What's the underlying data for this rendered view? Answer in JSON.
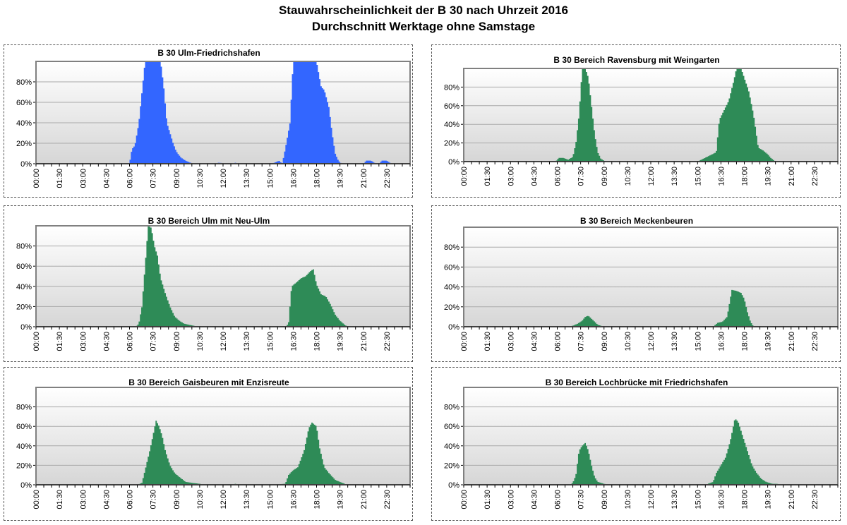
{
  "title": "Stauwahrscheinlichkeit der B 30 nach Uhrzeit 2016",
  "subtitle": "Durchschnitt Werktage ohne Samstage",
  "x_ticks": [
    "00:00",
    "01:30",
    "03:00",
    "04:30",
    "06:00",
    "07:30",
    "09:00",
    "10:30",
    "12:00",
    "13:30",
    "15:00",
    "16:30",
    "18:00",
    "19:30",
    "21:00",
    "22:30"
  ],
  "y_ticks": [
    "0%",
    "20%",
    "40%",
    "60%",
    "80%"
  ],
  "chart_data": [
    {
      "type": "area",
      "title": "B 30 Ulm-Friedrichshafen",
      "color": "#3366ff",
      "ylim": [
        0,
        100
      ],
      "xlim_hours": [
        0,
        24
      ],
      "x_hours": [
        0,
        6.0,
        6.15,
        6.35,
        6.6,
        6.8,
        7.0,
        7.2,
        7.6,
        8.0,
        8.2,
        8.4,
        8.6,
        8.8,
        9.0,
        9.3,
        9.6,
        9.9,
        10.2,
        10.5,
        11.5,
        11.7,
        12.5,
        12.8,
        13.0,
        15.0,
        15.3,
        15.6,
        15.8,
        16.0,
        16.3,
        16.5,
        16.8,
        17.5,
        18.0,
        18.3,
        18.5,
        18.8,
        19.0,
        19.2,
        19.4,
        19.6,
        19.8,
        20.5,
        21.0,
        21.2,
        21.5,
        21.8,
        22.0,
        22.2,
        22.5,
        22.8,
        23.0,
        24
      ],
      "values": [
        0,
        0,
        14,
        18,
        40,
        70,
        100,
        100,
        100,
        100,
        75,
        40,
        30,
        20,
        12,
        6,
        3,
        1,
        0,
        0,
        0,
        1,
        0,
        1,
        0,
        0,
        1,
        3,
        0,
        15,
        40,
        100,
        100,
        100,
        100,
        75,
        72,
        55,
        30,
        10,
        3,
        0,
        0,
        0,
        0,
        3,
        3,
        0,
        0,
        3,
        3,
        0,
        0,
        0
      ]
    },
    {
      "type": "area",
      "title": "B 30 Bereich Ravensburg mit Weingarten",
      "color": "#2e8b57",
      "ylim": [
        0,
        100
      ],
      "xlim_hours": [
        0,
        24
      ],
      "x_hours": [
        0,
        5.9,
        6.1,
        6.4,
        6.7,
        7.0,
        7.2,
        7.4,
        7.6,
        7.8,
        8.0,
        8.2,
        8.4,
        8.6,
        8.8,
        9.0,
        9.2,
        10.0,
        15.0,
        16.2,
        16.4,
        16.7,
        17.0,
        17.3,
        17.5,
        17.8,
        18.0,
        18.3,
        18.6,
        18.9,
        19.2,
        19.5,
        19.7,
        20.0,
        24
      ],
      "values": [
        0,
        0,
        4,
        4,
        2,
        5,
        20,
        50,
        100,
        100,
        90,
        60,
        30,
        10,
        3,
        1,
        0,
        0,
        0,
        10,
        45,
        55,
        65,
        85,
        100,
        100,
        90,
        75,
        50,
        15,
        12,
        8,
        4,
        0,
        0
      ]
    },
    {
      "type": "area",
      "title": "B 30 Bereich Ulm mit Neu-Ulm",
      "color": "#2e8b57",
      "ylim": [
        0,
        100
      ],
      "xlim_hours": [
        0,
        24
      ],
      "x_hours": [
        0,
        6.4,
        6.6,
        6.8,
        7.0,
        7.2,
        7.4,
        7.6,
        7.8,
        8.0,
        8.3,
        8.6,
        8.9,
        9.2,
        9.5,
        9.8,
        10.1,
        10.5,
        11.0,
        16.0,
        16.2,
        16.4,
        16.8,
        17.0,
        17.3,
        17.6,
        17.8,
        18.0,
        18.3,
        18.6,
        18.9,
        19.2,
        19.5,
        19.8,
        20.0,
        24
      ],
      "values": [
        0,
        0,
        3,
        20,
        60,
        100,
        98,
        80,
        70,
        48,
        33,
        20,
        10,
        6,
        3,
        2,
        1,
        0,
        0,
        0,
        3,
        40,
        45,
        48,
        50,
        55,
        57,
        42,
        32,
        30,
        22,
        12,
        6,
        2,
        0,
        0
      ]
    },
    {
      "type": "area",
      "title": "B 30 Bereich Meckenbeuren",
      "color": "#2e8b57",
      "ylim": [
        0,
        100
      ],
      "xlim_hours": [
        0,
        24
      ],
      "x_hours": [
        0,
        6.5,
        7.0,
        7.3,
        7.6,
        7.8,
        8.0,
        8.2,
        8.4,
        8.6,
        8.8,
        9.0,
        9.5,
        16.0,
        16.3,
        16.6,
        16.9,
        17.2,
        17.5,
        17.8,
        18.0,
        18.2,
        18.4,
        18.6,
        24
      ],
      "values": [
        0,
        0,
        1,
        3,
        6,
        10,
        11,
        8,
        5,
        2,
        1,
        0,
        0,
        0,
        4,
        5,
        10,
        37,
        36,
        34,
        28,
        15,
        5,
        0,
        0
      ]
    },
    {
      "type": "area",
      "title": "B 30 Bereich Gaisbeuren mit Enzisreute",
      "color": "#2e8b57",
      "ylim": [
        0,
        100
      ],
      "xlim_hours": [
        0,
        24
      ],
      "x_hours": [
        0,
        6.5,
        6.8,
        7.0,
        7.3,
        7.5,
        7.7,
        7.9,
        8.1,
        8.3,
        8.6,
        8.9,
        9.2,
        9.6,
        10.0,
        10.5,
        11.0,
        12.5,
        12.8,
        13.0,
        15.0,
        16.0,
        16.2,
        16.5,
        16.8,
        17.2,
        17.5,
        17.7,
        18.0,
        18.2,
        18.5,
        18.8,
        19.2,
        19.5,
        19.8,
        20.0,
        24
      ],
      "values": [
        0,
        0,
        2,
        15,
        35,
        50,
        66,
        60,
        50,
        35,
        20,
        12,
        8,
        3,
        2,
        1,
        0,
        0,
        1,
        0,
        0,
        1,
        10,
        15,
        18,
        35,
        58,
        64,
        60,
        38,
        18,
        12,
        5,
        3,
        1,
        0,
        0
      ]
    },
    {
      "type": "area",
      "title": "B 30 Bereich Lochbrücke mit Friedrichshafen",
      "color": "#2e8b57",
      "ylim": [
        0,
        100
      ],
      "xlim_hours": [
        0,
        24
      ],
      "x_hours": [
        0,
        6.8,
        7.0,
        7.2,
        7.4,
        7.6,
        7.8,
        8.0,
        8.2,
        8.4,
        8.6,
        8.8,
        9.0,
        9.5,
        15.5,
        16.0,
        16.2,
        16.5,
        16.8,
        17.1,
        17.4,
        17.6,
        17.8,
        18.0,
        18.2,
        18.5,
        18.8,
        19.1,
        19.4,
        19.8,
        20.1,
        20.3,
        24
      ],
      "values": [
        0,
        0,
        2,
        10,
        35,
        40,
        43,
        35,
        20,
        8,
        3,
        2,
        1,
        0,
        0,
        3,
        12,
        20,
        28,
        45,
        68,
        65,
        55,
        45,
        35,
        20,
        12,
        6,
        3,
        1,
        1,
        0,
        0
      ]
    }
  ]
}
